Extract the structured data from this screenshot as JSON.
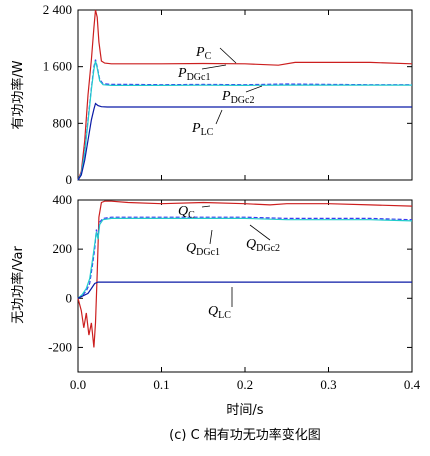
{
  "caption": "(c) C 相有功无功率变化图",
  "colors": {
    "P_C": "#cc1f1f",
    "P_DGc1": "#3a3af0",
    "P_DGc2": "#22cccc",
    "P_LC": "#0a1aa6",
    "Q_C": "#cc1f1f",
    "Q_DGc1": "#3a3af0",
    "Q_DGc2": "#22cccc",
    "Q_LC": "#0a1aa6"
  },
  "chart_data": [
    {
      "type": "line",
      "xlabel": "",
      "ylabel": "有功功率/W",
      "xlim": [
        0,
        0.4
      ],
      "ylim": [
        0,
        2400
      ],
      "yticks": [
        0,
        800,
        1600,
        2400
      ],
      "ytick_labels": [
        "0",
        "800",
        "1 600",
        "2 400"
      ],
      "grid": false,
      "series": [
        {
          "key": "P_C",
          "label_main": "P",
          "label_sub": "C",
          "x": [
            0,
            0.004,
            0.008,
            0.012,
            0.016,
            0.019,
            0.021,
            0.023,
            0.025,
            0.028,
            0.032,
            0.04,
            0.06,
            0.1,
            0.15,
            0.2,
            0.24,
            0.26,
            0.3,
            0.35,
            0.4
          ],
          "y": [
            0,
            120,
            550,
            1200,
            1700,
            2150,
            2400,
            2300,
            1950,
            1680,
            1650,
            1640,
            1640,
            1640,
            1645,
            1640,
            1620,
            1660,
            1660,
            1660,
            1640
          ]
        },
        {
          "key": "P_DGc1",
          "label_main": "P",
          "label_sub": "DGc1",
          "x": [
            0,
            0.004,
            0.008,
            0.012,
            0.016,
            0.019,
            0.021,
            0.023,
            0.026,
            0.03,
            0.04,
            0.06,
            0.1,
            0.15,
            0.2,
            0.25,
            0.3,
            0.35,
            0.4
          ],
          "y": [
            0,
            100,
            400,
            850,
            1300,
            1600,
            1700,
            1600,
            1420,
            1360,
            1350,
            1350,
            1345,
            1350,
            1345,
            1355,
            1350,
            1345,
            1345
          ]
        },
        {
          "key": "P_DGc2",
          "label_main": "P",
          "label_sub": "DGc2",
          "x": [
            0,
            0.004,
            0.008,
            0.012,
            0.016,
            0.019,
            0.021,
            0.023,
            0.026,
            0.03,
            0.04,
            0.06,
            0.1,
            0.15,
            0.2,
            0.25,
            0.3,
            0.35,
            0.4
          ],
          "y": [
            0,
            90,
            380,
            820,
            1280,
            1560,
            1680,
            1580,
            1400,
            1345,
            1335,
            1335,
            1335,
            1338,
            1335,
            1340,
            1340,
            1340,
            1340
          ]
        },
        {
          "key": "P_LC",
          "label_main": "P",
          "label_sub": "LC",
          "x": [
            0,
            0.004,
            0.008,
            0.012,
            0.016,
            0.019,
            0.021,
            0.024,
            0.028,
            0.035,
            0.05,
            0.1,
            0.2,
            0.3,
            0.4
          ],
          "y": [
            0,
            70,
            280,
            560,
            850,
            1000,
            1080,
            1050,
            1035,
            1030,
            1030,
            1030,
            1030,
            1030,
            1030
          ]
        }
      ],
      "annotations": [
        {
          "key": "P_C",
          "main": "P",
          "sub": "C"
        },
        {
          "key": "P_DGc1",
          "main": "P",
          "sub": "DGc1"
        },
        {
          "key": "P_DGc2",
          "main": "P",
          "sub": "DGc2"
        },
        {
          "key": "P_LC",
          "main": "P",
          "sub": "LC"
        }
      ]
    },
    {
      "type": "line",
      "xlabel": "时间/s",
      "ylabel": "无功功率/Var",
      "xlim": [
        0,
        0.4
      ],
      "ylim": [
        -300,
        400
      ],
      "xticks": [
        0.0,
        0.1,
        0.2,
        0.3,
        0.4
      ],
      "xtick_labels": [
        "0.0",
        "0.1",
        "0.2",
        "0.3",
        "0.4"
      ],
      "yticks": [
        -200,
        0,
        200,
        400
      ],
      "ytick_labels": [
        "-200",
        "0",
        "200",
        "400"
      ],
      "grid": false,
      "series": [
        {
          "key": "Q_C",
          "x": [
            0,
            0.004,
            0.007,
            0.01,
            0.013,
            0.016,
            0.019,
            0.021,
            0.023,
            0.025,
            0.028,
            0.032,
            0.04,
            0.06,
            0.1,
            0.15,
            0.2,
            0.23,
            0.25,
            0.3,
            0.35,
            0.4
          ],
          "y": [
            0,
            -50,
            -120,
            -60,
            -150,
            -100,
            -200,
            -100,
            100,
            330,
            390,
            395,
            395,
            390,
            385,
            390,
            385,
            380,
            385,
            385,
            380,
            375
          ]
        },
        {
          "key": "Q_DGc1",
          "x": [
            0,
            0.005,
            0.01,
            0.014,
            0.018,
            0.02,
            0.022,
            0.024,
            0.026,
            0.03,
            0.04,
            0.06,
            0.1,
            0.15,
            0.2,
            0.25,
            0.3,
            0.35,
            0.4
          ],
          "y": [
            0,
            10,
            30,
            60,
            150,
            200,
            280,
            250,
            310,
            325,
            330,
            330,
            330,
            330,
            330,
            325,
            325,
            325,
            320
          ]
        },
        {
          "key": "Q_DGc2",
          "x": [
            0,
            0.005,
            0.01,
            0.014,
            0.018,
            0.02,
            0.022,
            0.024,
            0.026,
            0.03,
            0.04,
            0.06,
            0.1,
            0.15,
            0.2,
            0.25,
            0.3,
            0.35,
            0.4
          ],
          "y": [
            0,
            15,
            40,
            80,
            170,
            220,
            270,
            240,
            300,
            320,
            325,
            325,
            325,
            325,
            325,
            320,
            320,
            320,
            315
          ]
        },
        {
          "key": "Q_LC",
          "x": [
            0,
            0.006,
            0.012,
            0.016,
            0.02,
            0.024,
            0.03,
            0.05,
            0.1,
            0.2,
            0.3,
            0.4
          ],
          "y": [
            0,
            10,
            20,
            40,
            60,
            66,
            66,
            66,
            66,
            66,
            66,
            66
          ]
        }
      ],
      "annotations": [
        {
          "key": "Q_C",
          "main": "Q",
          "sub": "C"
        },
        {
          "key": "Q_DGc1",
          "main": "Q",
          "sub": "DGc1"
        },
        {
          "key": "Q_DGc2",
          "main": "Q",
          "sub": "DGc2"
        },
        {
          "key": "Q_LC",
          "main": "Q",
          "sub": "LC"
        }
      ]
    }
  ]
}
